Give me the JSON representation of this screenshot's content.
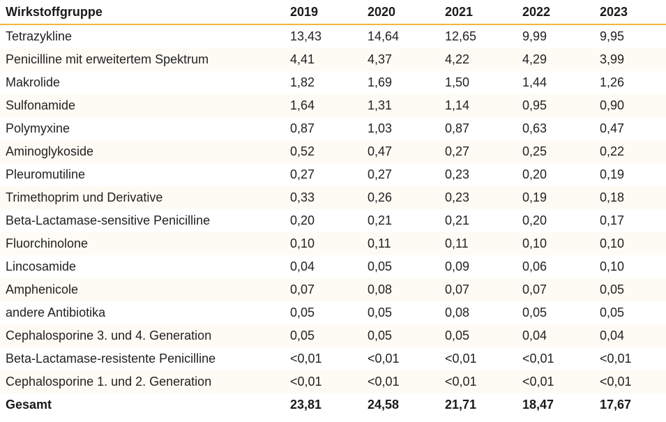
{
  "table": {
    "header": {
      "group": "Wirkstoffgruppe",
      "years": [
        "2019",
        "2020",
        "2021",
        "2022",
        "2023"
      ]
    },
    "rows": [
      {
        "name": "Tetrazykline",
        "values": [
          "13,43",
          "14,64",
          "12,65",
          "9,99",
          "9,95"
        ]
      },
      {
        "name": "Penicilline mit erweitertem Spektrum",
        "values": [
          "4,41",
          "4,37",
          "4,22",
          "4,29",
          "3,99"
        ]
      },
      {
        "name": "Makrolide",
        "values": [
          "1,82",
          "1,69",
          "1,50",
          "1,44",
          "1,26"
        ]
      },
      {
        "name": "Sulfonamide",
        "values": [
          "1,64",
          "1,31",
          "1,14",
          "0,95",
          "0,90"
        ]
      },
      {
        "name": "Polymyxine",
        "values": [
          "0,87",
          "1,03",
          "0,87",
          "0,63",
          "0,47"
        ]
      },
      {
        "name": "Aminoglykoside",
        "values": [
          "0,52",
          "0,47",
          "0,27",
          "0,25",
          "0,22"
        ]
      },
      {
        "name": "Pleuromutiline",
        "values": [
          "0,27",
          "0,27",
          "0,23",
          "0,20",
          "0,19"
        ]
      },
      {
        "name": "Trimethoprim und Derivative",
        "values": [
          "0,33",
          "0,26",
          "0,23",
          "0,19",
          "0,18"
        ]
      },
      {
        "name": "Beta-Lactamase-sensitive Penicilline",
        "values": [
          "0,20",
          "0,21",
          "0,21",
          "0,20",
          "0,17"
        ]
      },
      {
        "name": "Fluorchinolone",
        "values": [
          "0,10",
          "0,11",
          "0,11",
          "0,10",
          "0,10"
        ]
      },
      {
        "name": "Lincosamide",
        "values": [
          "0,04",
          "0,05",
          "0,09",
          "0,06",
          "0,10"
        ]
      },
      {
        "name": "Amphenicole",
        "values": [
          "0,07",
          "0,08",
          "0,07",
          "0,07",
          "0,05"
        ]
      },
      {
        "name": "andere Antibiotika",
        "values": [
          "0,05",
          "0,05",
          "0,08",
          "0,05",
          "0,05"
        ]
      },
      {
        "name": "Cephalosporine 3. und 4. Generation",
        "values": [
          "0,05",
          "0,05",
          "0,05",
          "0,04",
          "0,04"
        ]
      },
      {
        "name": "Beta-Lactamase-resistente Penicilline",
        "values": [
          "<0,01",
          "<0,01",
          "<0,01",
          "<0,01",
          "<0,01"
        ]
      },
      {
        "name": "Cephalosporine 1. und 2. Generation",
        "values": [
          "<0,01",
          "<0,01",
          "<0,01",
          "<0,01",
          "<0,01"
        ]
      }
    ],
    "total": {
      "name": "Gesamt",
      "values": [
        "23,81",
        "24,58",
        "21,71",
        "18,47",
        "17,67"
      ]
    }
  },
  "colors": {
    "header_rule": "#f2b53f",
    "row_shade": "#fdfbf4",
    "text": "#222222"
  }
}
